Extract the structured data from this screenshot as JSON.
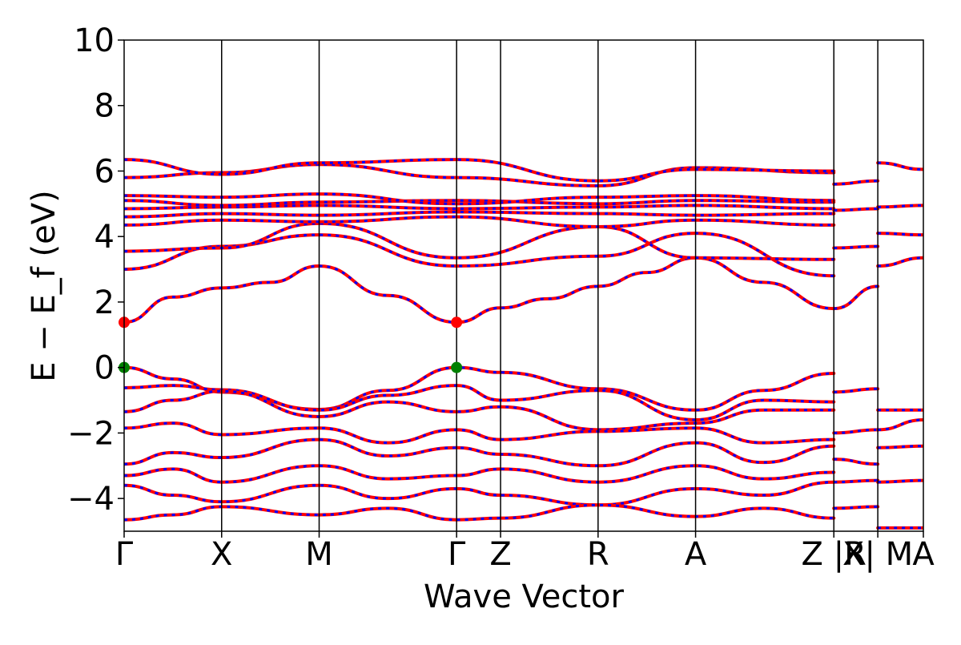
{
  "chart_data": {
    "type": "line",
    "title": "",
    "xlabel": "Wave Vector",
    "ylabel": "E − E_f (eV)",
    "ylim": [
      -5,
      10
    ],
    "yticks": [
      -4,
      -2,
      0,
      2,
      4,
      6,
      8,
      10
    ],
    "grid": false,
    "legend": "none",
    "path_labels": [
      "Γ",
      "X",
      "M",
      "Γ",
      "Z",
      "R",
      "A",
      "Z |R",
      "X| M",
      "A"
    ],
    "k_path_points": [
      0,
      0.122,
      0.244,
      0.416,
      0.471,
      0.593,
      0.715,
      0.888,
      0.943,
      1.0
    ],
    "segments": [
      [
        0,
        0.888
      ],
      [
        0.888,
        0.943
      ],
      [
        0.943,
        1.0
      ]
    ],
    "markers": [
      {
        "name": "CBM",
        "k": 0.0,
        "energy": 1.38,
        "color": "#ff0000"
      },
      {
        "name": "CBM",
        "k": 0.416,
        "energy": 1.38,
        "color": "#ff0000"
      },
      {
        "name": "VBM",
        "k": 0.0,
        "energy": 0.0,
        "color": "#008000"
      },
      {
        "name": "VBM",
        "k": 0.416,
        "energy": 0.0,
        "color": "#008000"
      }
    ],
    "colors": {
      "spin_up": "#ff0000",
      "spin_down": "#0000ff",
      "vbm": "#008000",
      "cbm": "#ff0000"
    },
    "series": [
      {
        "k": [
          0,
          0.061,
          0.122,
          0.183,
          0.244,
          0.33,
          0.416
        ],
        "energy": [
          1.38,
          2.15,
          2.43,
          2.6,
          3.1,
          2.2,
          1.38
        ]
      },
      {
        "k": [
          0.416,
          0.471,
          0.53,
          0.593,
          0.654,
          0.715,
          0.8,
          0.888
        ],
        "energy": [
          1.38,
          1.82,
          2.1,
          2.48,
          2.9,
          3.35,
          2.6,
          1.8
        ]
      },
      {
        "k": [
          0,
          0.061,
          0.122,
          0.244,
          0.33,
          0.416,
          0.471,
          0.593,
          0.715,
          0.8,
          0.888
        ],
        "energy": [
          0,
          -0.35,
          -0.75,
          -1.28,
          -0.7,
          0,
          -0.15,
          -0.65,
          -1.3,
          -0.7,
          -0.18
        ]
      },
      {
        "k": [
          0,
          0.061,
          0.122,
          0.244,
          0.33,
          0.416,
          0.471,
          0.593,
          0.715,
          0.8,
          0.888
        ],
        "energy": [
          -0.62,
          -0.55,
          -0.68,
          -1.3,
          -0.85,
          -0.55,
          -1.0,
          -0.7,
          -1.6,
          -1.0,
          -1.05
        ]
      },
      {
        "k": [
          0,
          0.061,
          0.122,
          0.244,
          0.33,
          0.416,
          0.471,
          0.593,
          0.715,
          0.8,
          0.888
        ],
        "energy": [
          -1.35,
          -1.0,
          -0.72,
          -1.5,
          -1.05,
          -1.35,
          -1.2,
          -1.9,
          -1.7,
          -1.3,
          -1.3
        ]
      },
      {
        "k": [
          0,
          0.061,
          0.122,
          0.244,
          0.33,
          0.416,
          0.471,
          0.593,
          0.715,
          0.8,
          0.888
        ],
        "energy": [
          -1.85,
          -1.7,
          -2.05,
          -1.85,
          -2.3,
          -1.9,
          -2.2,
          -1.95,
          -1.85,
          -2.3,
          -2.2
        ]
      },
      {
        "k": [
          0,
          0.061,
          0.122,
          0.244,
          0.33,
          0.416,
          0.471,
          0.593,
          0.715,
          0.8,
          0.888
        ],
        "energy": [
          -2.95,
          -2.6,
          -2.75,
          -2.2,
          -2.7,
          -2.45,
          -2.65,
          -3.0,
          -2.3,
          -2.9,
          -2.4
        ]
      },
      {
        "k": [
          0,
          0.061,
          0.122,
          0.244,
          0.33,
          0.416,
          0.471,
          0.593,
          0.715,
          0.8,
          0.888
        ],
        "energy": [
          -3.3,
          -3.1,
          -3.5,
          -3.0,
          -3.4,
          -3.3,
          -3.1,
          -3.5,
          -3.0,
          -3.4,
          -3.2
        ]
      },
      {
        "k": [
          0,
          0.061,
          0.122,
          0.244,
          0.33,
          0.416,
          0.471,
          0.593,
          0.715,
          0.8,
          0.888
        ],
        "energy": [
          -3.6,
          -3.9,
          -4.1,
          -3.6,
          -4.0,
          -3.7,
          -3.9,
          -4.2,
          -3.7,
          -3.9,
          -3.5
        ]
      },
      {
        "k": [
          0,
          0.061,
          0.122,
          0.244,
          0.33,
          0.416,
          0.471,
          0.593,
          0.715,
          0.8,
          0.888
        ],
        "energy": [
          -4.65,
          -4.5,
          -4.25,
          -4.5,
          -4.3,
          -4.65,
          -4.6,
          -4.2,
          -4.55,
          -4.3,
          -4.6
        ]
      },
      {
        "k": [
          0,
          0.122,
          0.244,
          0.416,
          0.593,
          0.715,
          0.888
        ],
        "energy": [
          3.0,
          3.7,
          4.05,
          3.1,
          3.4,
          4.1,
          2.8
        ]
      },
      {
        "k": [
          0,
          0.122,
          0.244,
          0.416,
          0.593,
          0.715,
          0.888
        ],
        "energy": [
          3.55,
          3.65,
          4.4,
          3.35,
          4.3,
          3.35,
          3.3
        ]
      },
      {
        "k": [
          0,
          0.122,
          0.244,
          0.416,
          0.593,
          0.715,
          0.888
        ],
        "energy": [
          4.35,
          4.5,
          4.45,
          4.6,
          4.3,
          4.5,
          4.35
        ]
      },
      {
        "k": [
          0,
          0.122,
          0.244,
          0.416,
          0.593,
          0.715,
          0.888
        ],
        "energy": [
          4.6,
          4.7,
          4.65,
          4.75,
          4.7,
          4.65,
          4.7
        ]
      },
      {
        "k": [
          0,
          0.122,
          0.244,
          0.416,
          0.593,
          0.715,
          0.888
        ],
        "energy": [
          4.85,
          4.9,
          4.95,
          4.85,
          4.9,
          4.95,
          4.85
        ]
      },
      {
        "k": [
          0,
          0.122,
          0.244,
          0.416,
          0.593,
          0.715,
          0.888
        ],
        "energy": [
          5.1,
          4.95,
          5.05,
          5.1,
          5.0,
          5.1,
          5.05
        ]
      },
      {
        "k": [
          0,
          0.122,
          0.244,
          0.416,
          0.593,
          0.715,
          0.888
        ],
        "energy": [
          5.25,
          5.2,
          5.3,
          5.0,
          5.2,
          5.25,
          5.1
        ]
      },
      {
        "k": [
          0,
          0.122,
          0.244,
          0.416,
          0.593,
          0.715,
          0.888
        ],
        "energy": [
          5.8,
          5.95,
          6.2,
          5.8,
          5.55,
          6.1,
          5.95
        ]
      },
      {
        "k": [
          0,
          0.122,
          0.244,
          0.416,
          0.593,
          0.715,
          0.888
        ],
        "energy": [
          6.35,
          5.9,
          6.25,
          6.35,
          5.7,
          6.05,
          6.0
        ]
      },
      {
        "k": [
          0.888,
          0.943
        ],
        "energy": [
          1.8,
          2.48
        ]
      },
      {
        "k": [
          0.888,
          0.943
        ],
        "energy": [
          -0.75,
          -0.65
        ]
      },
      {
        "k": [
          0.888,
          0.943
        ],
        "energy": [
          -2.0,
          -1.9
        ]
      },
      {
        "k": [
          0.888,
          0.943
        ],
        "energy": [
          -2.8,
          -2.95
        ]
      },
      {
        "k": [
          0.888,
          0.943
        ],
        "energy": [
          -3.5,
          -3.45
        ]
      },
      {
        "k": [
          0.888,
          0.943
        ],
        "energy": [
          -4.3,
          -4.25
        ]
      },
      {
        "k": [
          0.888,
          0.943
        ],
        "energy": [
          3.65,
          3.7
        ]
      },
      {
        "k": [
          0.888,
          0.943
        ],
        "energy": [
          4.8,
          4.85
        ]
      },
      {
        "k": [
          0.888,
          0.943
        ],
        "energy": [
          5.6,
          5.7
        ]
      },
      {
        "k": [
          0.943,
          1.0
        ],
        "energy": [
          3.1,
          3.35
        ]
      },
      {
        "k": [
          0.943,
          1.0
        ],
        "energy": [
          -1.3,
          -1.3
        ]
      },
      {
        "k": [
          0.943,
          1.0
        ],
        "energy": [
          -1.9,
          -1.6
        ]
      },
      {
        "k": [
          0.943,
          1.0
        ],
        "energy": [
          -2.45,
          -2.4
        ]
      },
      {
        "k": [
          0.943,
          1.0
        ],
        "energy": [
          -3.5,
          -3.45
        ]
      },
      {
        "k": [
          0.943,
          1.0
        ],
        "energy": [
          -4.9,
          -4.9
        ]
      },
      {
        "k": [
          0.943,
          1.0
        ],
        "energy": [
          4.1,
          4.05
        ]
      },
      {
        "k": [
          0.943,
          1.0
        ],
        "energy": [
          4.9,
          4.95
        ]
      },
      {
        "k": [
          0.943,
          1.0
        ],
        "energy": [
          6.25,
          6.05
        ]
      }
    ]
  }
}
